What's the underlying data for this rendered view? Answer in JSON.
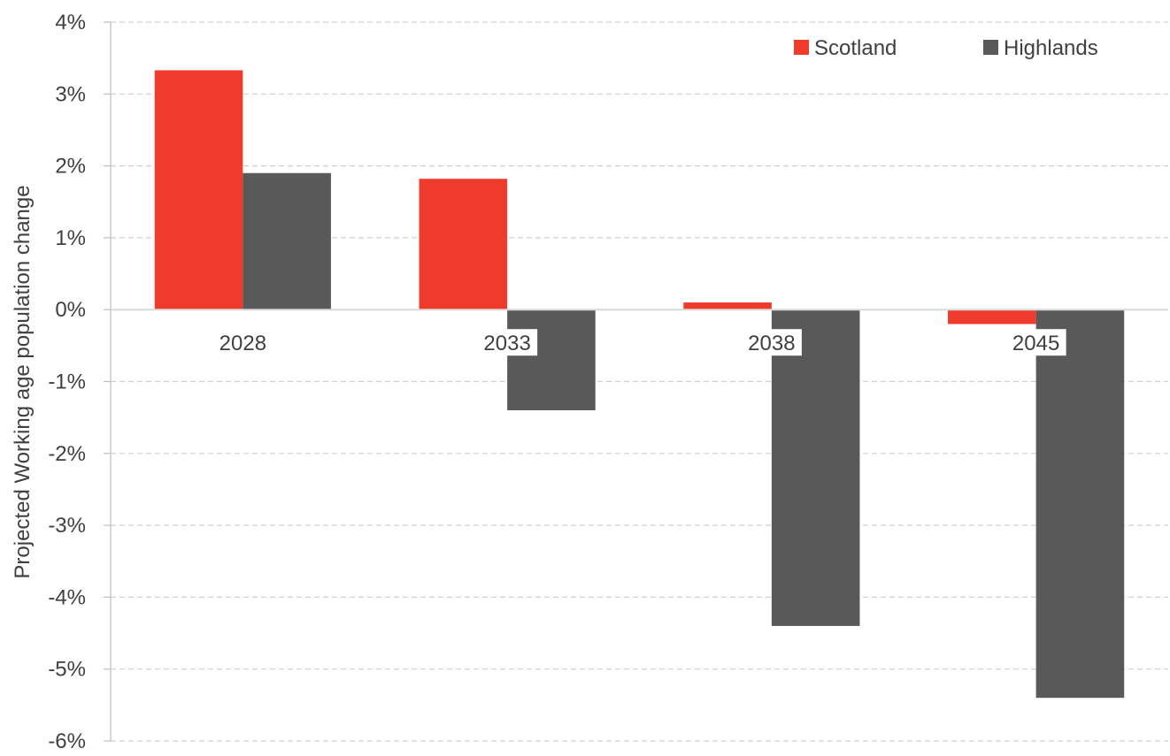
{
  "chart_data": {
    "type": "bar",
    "title": "",
    "xlabel": "",
    "ylabel": "Projected Working age population  change",
    "categories": [
      "2028",
      "2033",
      "2038",
      "2045"
    ],
    "series": [
      {
        "name": "Scotland",
        "color": "#ee3b2c",
        "values": [
          3.33,
          1.82,
          0.1,
          -0.2
        ]
      },
      {
        "name": "Highlands",
        "color": "#595959",
        "values": [
          1.9,
          -1.4,
          -4.4,
          -5.4
        ]
      }
    ],
    "ylim": [
      -6,
      4
    ],
    "yticks": [
      4,
      3,
      2,
      1,
      0,
      -1,
      -2,
      -3,
      -4,
      -5,
      -6
    ],
    "ytick_labels": [
      "4%",
      "3%",
      "2%",
      "1%",
      "0%",
      "-1%",
      "-2%",
      "-3%",
      "-4%",
      "-5%",
      "-6%"
    ],
    "grid": true,
    "legend_position": "top-right"
  }
}
